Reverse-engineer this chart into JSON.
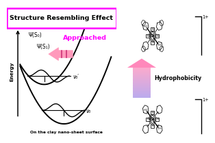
{
  "title": "Structure Resembling Effect",
  "title_magenta": "#ff00ff",
  "bg": "#ffffff",
  "black": "#000000",
  "magenta": "#ff00ff",
  "pink_light": "#ff99bb",
  "lavender": "#cc99ee",
  "energy_label": "Energy",
  "bottom_text": "On the clay nano-sheet surface",
  "approached_text": "Approached",
  "psi_s0": "Ψ(S₀)",
  "psi_s1": "Ψ(S₁)",
  "v0p": "ν₀′",
  "v0": "ν₀",
  "hydro_text": "Hydrophobicity",
  "charge": "1+"
}
